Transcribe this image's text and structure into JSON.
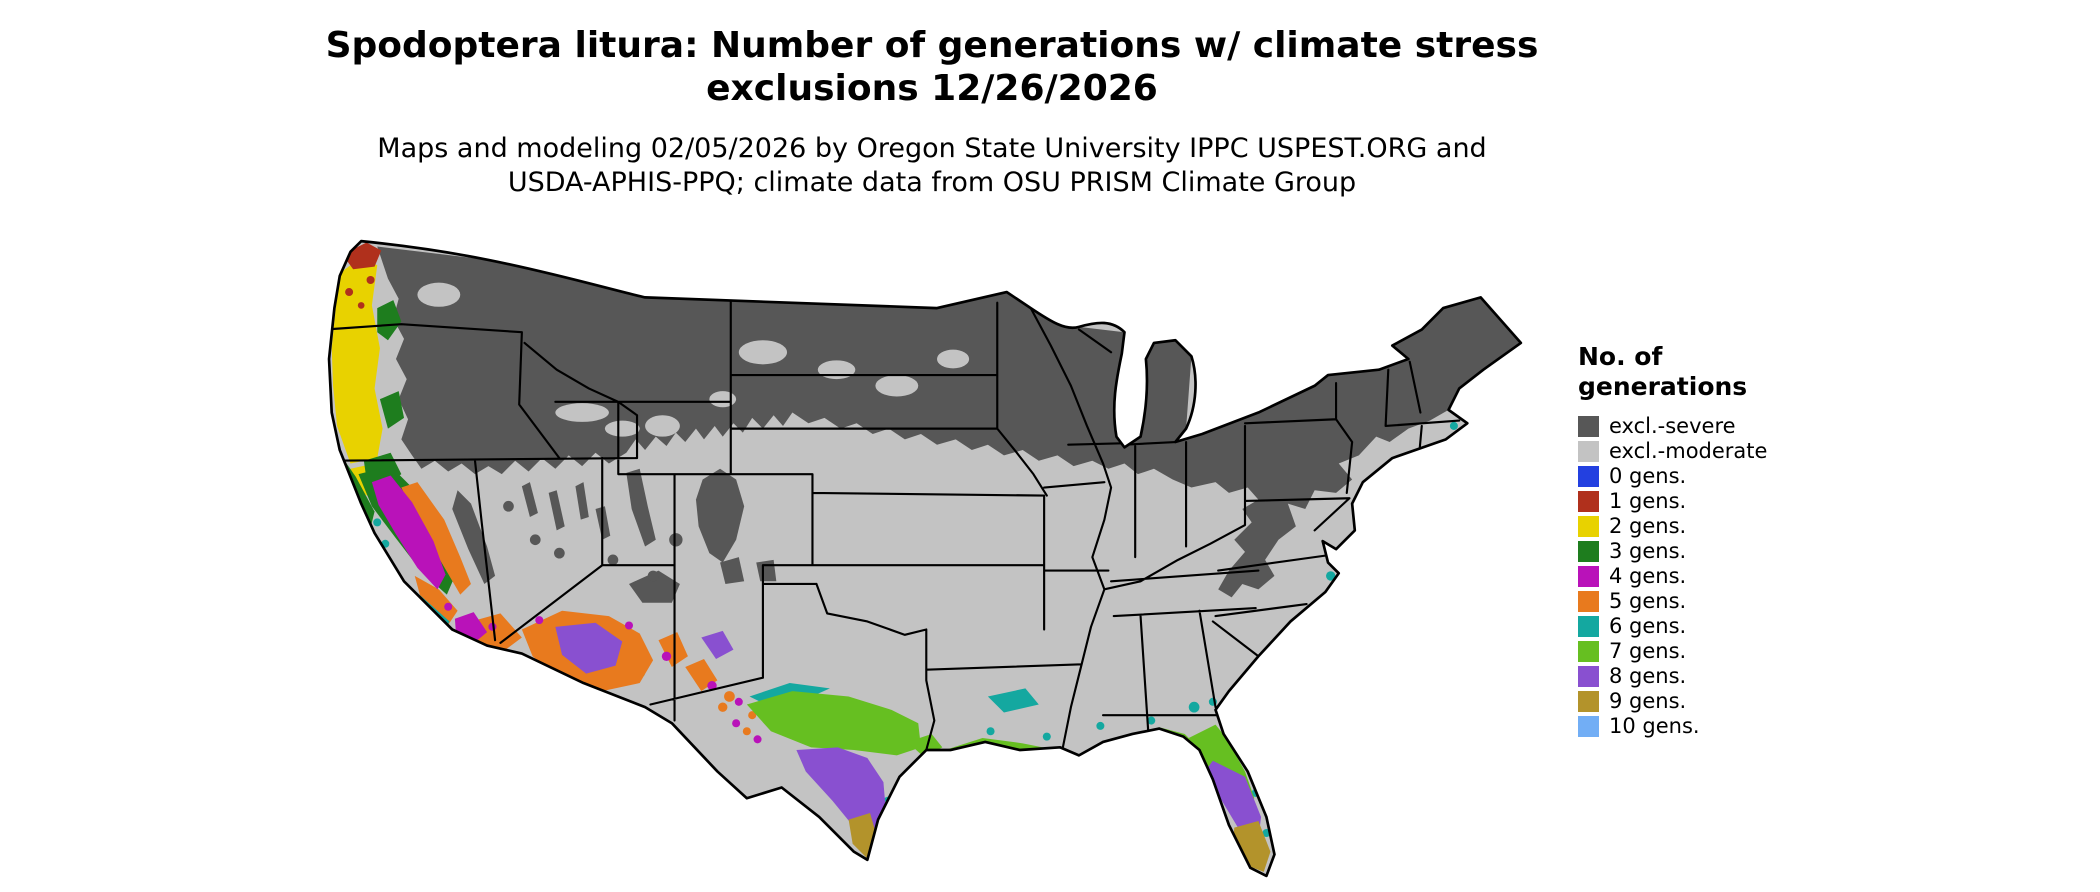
{
  "header": {
    "title_line1": "Spodoptera litura: Number of generations w/ climate stress",
    "title_line2": "exclusions 12/26/2026",
    "subtitle_line1": "Maps and modeling 02/05/2026 by Oregon State University IPPC USPEST.ORG and",
    "subtitle_line2": "USDA-APHIS-PPQ; climate data from OSU PRISM Climate Group"
  },
  "legend": {
    "title_line1": "No. of",
    "title_line2": "generations",
    "items": [
      {
        "key": "severe",
        "label": "excl.-severe",
        "color": "#575757"
      },
      {
        "key": "moderate",
        "label": "excl.-moderate",
        "color": "#c3c3c3"
      },
      {
        "key": "g0",
        "label": "0 gens.",
        "color": "#2340e0"
      },
      {
        "key": "g1",
        "label": "1 gens.",
        "color": "#b0301c"
      },
      {
        "key": "g2",
        "label": "2 gens.",
        "color": "#e8d200"
      },
      {
        "key": "g3",
        "label": "3 gens.",
        "color": "#1e7d1e"
      },
      {
        "key": "g4",
        "label": "4 gens.",
        "color": "#b912b9"
      },
      {
        "key": "g5",
        "label": "5 gens.",
        "color": "#e87a1e"
      },
      {
        "key": "g6",
        "label": "6 gens.",
        "color": "#14a8a0"
      },
      {
        "key": "g7",
        "label": "7 gens.",
        "color": "#66bf21"
      },
      {
        "key": "g8",
        "label": "8 gens.",
        "color": "#8950d0"
      },
      {
        "key": "g9",
        "label": "9 gens.",
        "color": "#b3932b"
      },
      {
        "key": "g10",
        "label": "10 gens.",
        "color": "#72aef5"
      }
    ]
  },
  "map": {
    "region": "Contiguous United States",
    "outline_color": "#000000"
  }
}
